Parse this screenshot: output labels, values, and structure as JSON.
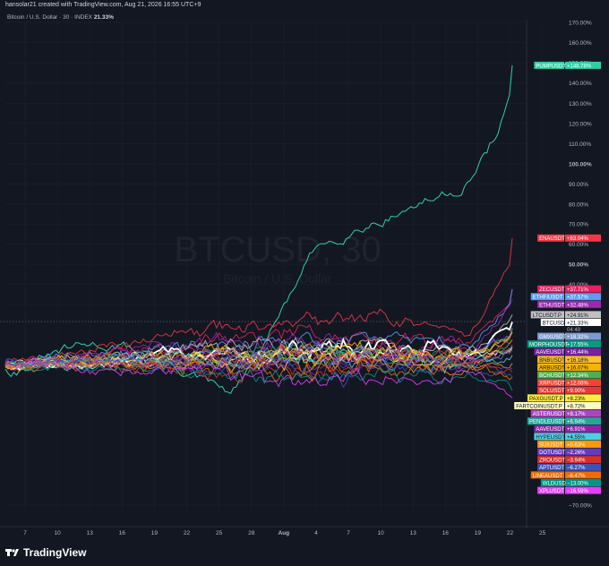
{
  "header": {
    "attribution": "hansolar21 created with TradingView.com, Aug 21, 2026 16:55 UTC+9",
    "symbol": "Bitcoin / U.S. Dollar · 30 · INDEX",
    "symbol_value": "21.33%"
  },
  "watermark": {
    "main": "BTCUSD, 30",
    "sub": "Bitcoin / U.S. Dollar"
  },
  "brand": {
    "name": "TradingView",
    "icon": "tradingview-logo-icon"
  },
  "chart_data": {
    "type": "line",
    "ylabel_unit": "%",
    "ylim": [
      -75,
      175
    ],
    "x_ticks": [
      "7",
      "10",
      "13",
      "16",
      "19",
      "22",
      "25",
      "28",
      "Aug",
      "4",
      "7",
      "10",
      "13",
      "16",
      "19",
      "22",
      "25"
    ],
    "y_ticks": [
      {
        "v": 170,
        "label": "170.00%"
      },
      {
        "v": 160,
        "label": "160.00%"
      },
      {
        "v": 150,
        "label": "150.00%"
      },
      {
        "v": 140,
        "label": "140.00%"
      },
      {
        "v": 130,
        "label": "130.00%"
      },
      {
        "v": 120,
        "label": "120.00%"
      },
      {
        "v": 110,
        "label": "110.00%"
      },
      {
        "v": 100,
        "label": "100.00%",
        "bold": true
      },
      {
        "v": 90,
        "label": "90.00%"
      },
      {
        "v": 80,
        "label": "80.00%"
      },
      {
        "v": 70,
        "label": "70.00%"
      },
      {
        "v": 60,
        "label": "60.00%"
      },
      {
        "v": 50,
        "label": "50.00%",
        "bold": true
      },
      {
        "v": 40,
        "label": "40.00%"
      },
      {
        "v": 30,
        "label": "30.00%"
      },
      {
        "v": -70,
        "label": "−70.00%"
      }
    ],
    "series": [
      {
        "name": "PUMPUSDT",
        "last": "+148.78%",
        "value": 148.78,
        "color": "#2fcfa6"
      },
      {
        "name": "ENAUSDT",
        "last": "+63.04%",
        "value": 63.04,
        "color": "#f23645"
      },
      {
        "name": "ZECUSDT",
        "last": "+37.71%",
        "value": 37.71,
        "color": "#e91e63"
      },
      {
        "name": "ETHFIUSDT",
        "last": "+37.57%",
        "value": 37.57,
        "color": "#5b9cf6"
      },
      {
        "name": "ETHUSDT",
        "last": "+32.48%",
        "value": 32.48,
        "color": "#9c27b0"
      },
      {
        "name": "LTCUSDT.P",
        "last": "+24.91%",
        "value": 24.91,
        "color": "#c0c0c0"
      },
      {
        "name": "BTCUSD",
        "last": "+21.33%",
        "sub": "04:49",
        "value": 21.33,
        "color": "#ffffff"
      },
      {
        "name": "GMXUSDT",
        "last": "+18.32%",
        "value": 18.32,
        "color": "#7e9bd1"
      },
      {
        "name": "MORPHOUSDT",
        "last": "+17.55%",
        "value": 17.55,
        "color": "#089981"
      },
      {
        "name": "AAVEUSDT",
        "last": "+16.44%",
        "value": 16.44,
        "color": "#7b1fa2"
      },
      {
        "name": "BNBUSDT",
        "last": "+16.18%",
        "value": 16.18,
        "color": "#fbc02d"
      },
      {
        "name": "ARBUSDT",
        "last": "+16.07%",
        "value": 16.07,
        "color": "#f5b400"
      },
      {
        "name": "BCHUSDT",
        "last": "+12.34%",
        "value": 12.34,
        "color": "#4caf50"
      },
      {
        "name": "XRPUSDT",
        "last": "+12.06%",
        "value": 12.06,
        "color": "#f44336"
      },
      {
        "name": "SOLUSDT",
        "last": "+9.90%",
        "value": 9.9,
        "color": "#e53935"
      },
      {
        "name": "PAXGUSDT.P",
        "last": "+8.23%",
        "value": 8.23,
        "color": "#ffeb3b"
      },
      {
        "name": "FARTCOINUSDT.P",
        "last": "+8.72%",
        "value": 8.72,
        "color": "#fff9c4"
      },
      {
        "name": "ASTERUSDT",
        "last": "+8.17%",
        "value": 8.17,
        "color": "#ab47bc"
      },
      {
        "name": "PENDLEUSDT",
        "last": "+6.94%",
        "value": 6.94,
        "color": "#26a69a"
      },
      {
        "name": "AAVEUSDT",
        "last": "+6.91%",
        "value": 6.91,
        "color": "#8e24aa"
      },
      {
        "name": "HYPEUSDT",
        "last": "+4.55%",
        "value": 4.55,
        "color": "#4dd0e1"
      },
      {
        "name": "SUIUSDT",
        "last": "+0.63%",
        "value": 0.63,
        "color": "#ff9800"
      },
      {
        "name": "DOTUSDT",
        "last": "−2.26%",
        "value": -2.26,
        "color": "#673ab7"
      },
      {
        "name": "ZROUSDT",
        "last": "−3.94%",
        "value": -3.94,
        "color": "#d32f2f"
      },
      {
        "name": "APTUSDT",
        "last": "−6.27%",
        "value": -6.27,
        "color": "#3f51b5"
      },
      {
        "name": "LINEAUSDT",
        "last": "−6.47%",
        "value": -6.47,
        "color": "#ef6c00"
      },
      {
        "name": "WLDUSD",
        "last": "−13.00%",
        "value": -13.0,
        "color": "#009688"
      },
      {
        "name": "XPLUSDT",
        "last": "−16.59%",
        "value": -16.59,
        "color": "#e040fb"
      }
    ]
  }
}
